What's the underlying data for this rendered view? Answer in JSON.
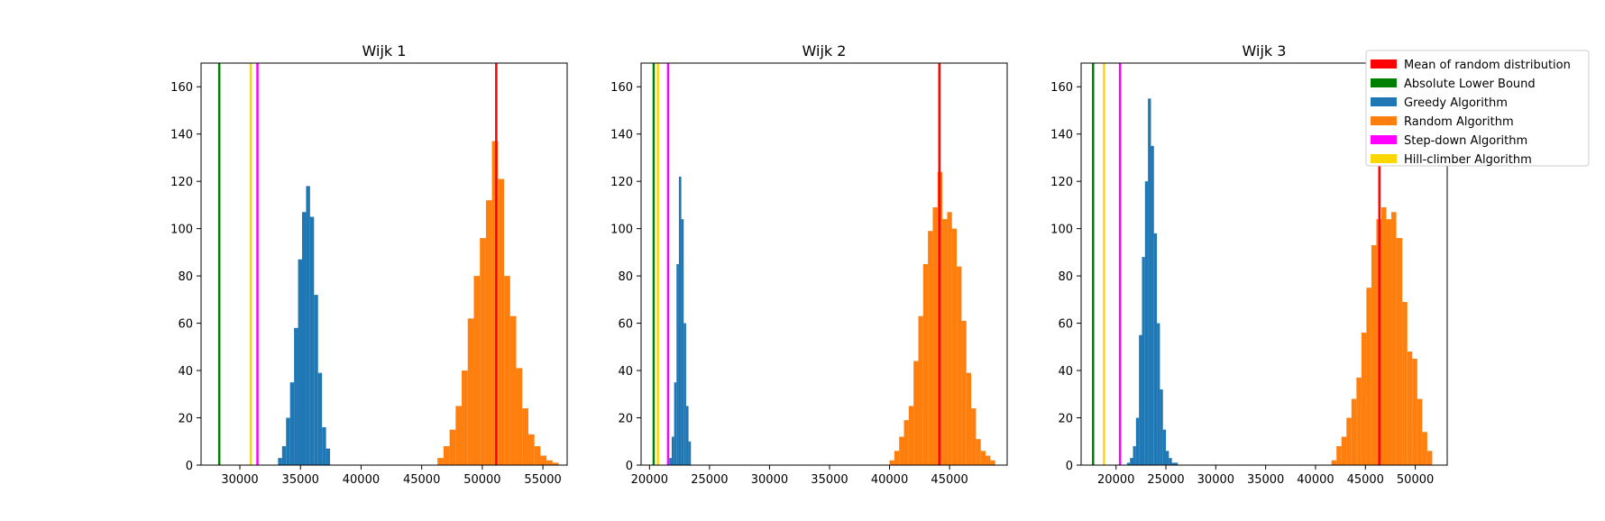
{
  "chart_data": [
    {
      "type": "histogram",
      "title": "Wijk 1",
      "xlim": [
        26800,
        57000
      ],
      "ylim": [
        0,
        170
      ],
      "xticks": [
        30000,
        35000,
        40000,
        45000,
        50000,
        55000
      ],
      "yticks": [
        0,
        20,
        40,
        60,
        80,
        100,
        120,
        140,
        160
      ],
      "vlines": [
        {
          "name": "Absolute Lower Bound",
          "x": 28300
        },
        {
          "name": "Hill-climber Algorithm",
          "x": 30900
        },
        {
          "name": "Step-down Algorithm",
          "x": 31450
        },
        {
          "name": "Mean of random distribution",
          "x": 51150
        }
      ],
      "histograms": [
        {
          "name": "Greedy Algorithm",
          "bin_edges": [
            33150,
            33480,
            33810,
            34140,
            34470,
            34800,
            35130,
            35460,
            35790,
            36120,
            36450,
            36780,
            37110,
            37440
          ],
          "counts": [
            3,
            8,
            20,
            35,
            58,
            87,
            107,
            118,
            105,
            72,
            39,
            16,
            7
          ]
        },
        {
          "name": "Random Algorithm",
          "bin_edges": [
            46300,
            46800,
            47300,
            47800,
            48300,
            48800,
            49300,
            49800,
            50300,
            50800,
            51300,
            51800,
            52300,
            52800,
            53300,
            53800,
            54300,
            54800,
            55300,
            55800,
            56300
          ],
          "counts": [
            3,
            8,
            15,
            25,
            40,
            62,
            80,
            96,
            112,
            137,
            121,
            80,
            63,
            41,
            24,
            13,
            8,
            4,
            2,
            1
          ]
        }
      ]
    },
    {
      "type": "histogram",
      "title": "Wijk 2",
      "xlim": [
        19300,
        49800
      ],
      "ylim": [
        0,
        170
      ],
      "xticks": [
        20000,
        25000,
        30000,
        35000,
        40000,
        45000,
        50000
      ],
      "yticks": [
        0,
        20,
        40,
        60,
        80,
        100,
        120,
        140,
        160
      ],
      "vlines": [
        {
          "name": "Absolute Lower Bound",
          "x": 20350
        },
        {
          "name": "Hill-climber Algorithm",
          "x": 20700
        },
        {
          "name": "Step-down Algorithm",
          "x": 21550
        },
        {
          "name": "Mean of random distribution",
          "x": 44150
        }
      ],
      "histograms": [
        {
          "name": "Greedy Algorithm",
          "bin_edges": [
            21650,
            21850,
            22050,
            22250,
            22450,
            22650,
            22850,
            23050,
            23250,
            23450
          ],
          "counts": [
            3,
            12,
            35,
            85,
            122,
            104,
            60,
            25,
            10
          ]
        },
        {
          "name": "Random Algorithm",
          "bin_edges": [
            40000,
            40400,
            40800,
            41200,
            41600,
            42000,
            42400,
            42800,
            43200,
            43600,
            44000,
            44400,
            44800,
            45200,
            45600,
            46000,
            46400,
            46800,
            47200,
            47600,
            48000,
            48400,
            48800
          ],
          "counts": [
            2,
            6,
            12,
            19,
            25,
            44,
            63,
            85,
            99,
            109,
            124,
            104,
            107,
            100,
            84,
            61,
            39,
            24,
            11,
            6,
            4,
            2
          ]
        }
      ]
    },
    {
      "type": "histogram",
      "title": "Wijk 3",
      "xlim": [
        16500,
        53200
      ],
      "ylim": [
        0,
        170
      ],
      "xticks": [
        20000,
        25000,
        30000,
        35000,
        40000,
        45000,
        50000
      ],
      "yticks": [
        0,
        20,
        40,
        60,
        80,
        100,
        120,
        140,
        160
      ],
      "vlines": [
        {
          "name": "Absolute Lower Bound",
          "x": 17700
        },
        {
          "name": "Hill-climber Algorithm",
          "x": 18800
        },
        {
          "name": "Step-down Algorithm",
          "x": 20400
        },
        {
          "name": "Mean of random distribution",
          "x": 46400
        }
      ],
      "histograms": [
        {
          "name": "Greedy Algorithm",
          "bin_edges": [
            21100,
            21400,
            21700,
            22000,
            22300,
            22600,
            22900,
            23200,
            23500,
            23800,
            24100,
            24400,
            24700,
            25000,
            25300,
            25600,
            25900,
            26200
          ],
          "counts": [
            1,
            3,
            8,
            20,
            55,
            88,
            120,
            155,
            135,
            98,
            60,
            32,
            15,
            6,
            3,
            1,
            1
          ]
        },
        {
          "name": "Random Algorithm",
          "bin_edges": [
            41600,
            42100,
            42600,
            43100,
            43600,
            44100,
            44600,
            45100,
            45600,
            46100,
            46600,
            47100,
            47600,
            48100,
            48700,
            49200,
            49700,
            50200,
            50700,
            51200,
            51700
          ],
          "counts": [
            2,
            8,
            12,
            20,
            28,
            37,
            56,
            75,
            93,
            104,
            109,
            104,
            107,
            96,
            69,
            48,
            45,
            28,
            14,
            6
          ]
        }
      ]
    }
  ],
  "legend": {
    "placement": "upper-right",
    "entries": [
      {
        "label": "Mean of random distribution",
        "color": "#ff0000"
      },
      {
        "label": "Absolute Lower Bound",
        "color": "#008000"
      },
      {
        "label": "Greedy Algorithm",
        "color": "#1f77b4"
      },
      {
        "label": "Random Algorithm",
        "color": "#ff7f0e"
      },
      {
        "label": "Step-down Algorithm",
        "color": "#ff00ff"
      },
      {
        "label": "Hill-climber Algorithm",
        "color": "#ffd700"
      }
    ]
  },
  "colors": {
    "Mean of random distribution": "#ff0000",
    "Absolute Lower Bound": "#008000",
    "Greedy Algorithm": "#1f77b4",
    "Random Algorithm": "#ff7f0e",
    "Step-down Algorithm": "#ff00ff",
    "Hill-climber Algorithm": "#ffd700"
  }
}
